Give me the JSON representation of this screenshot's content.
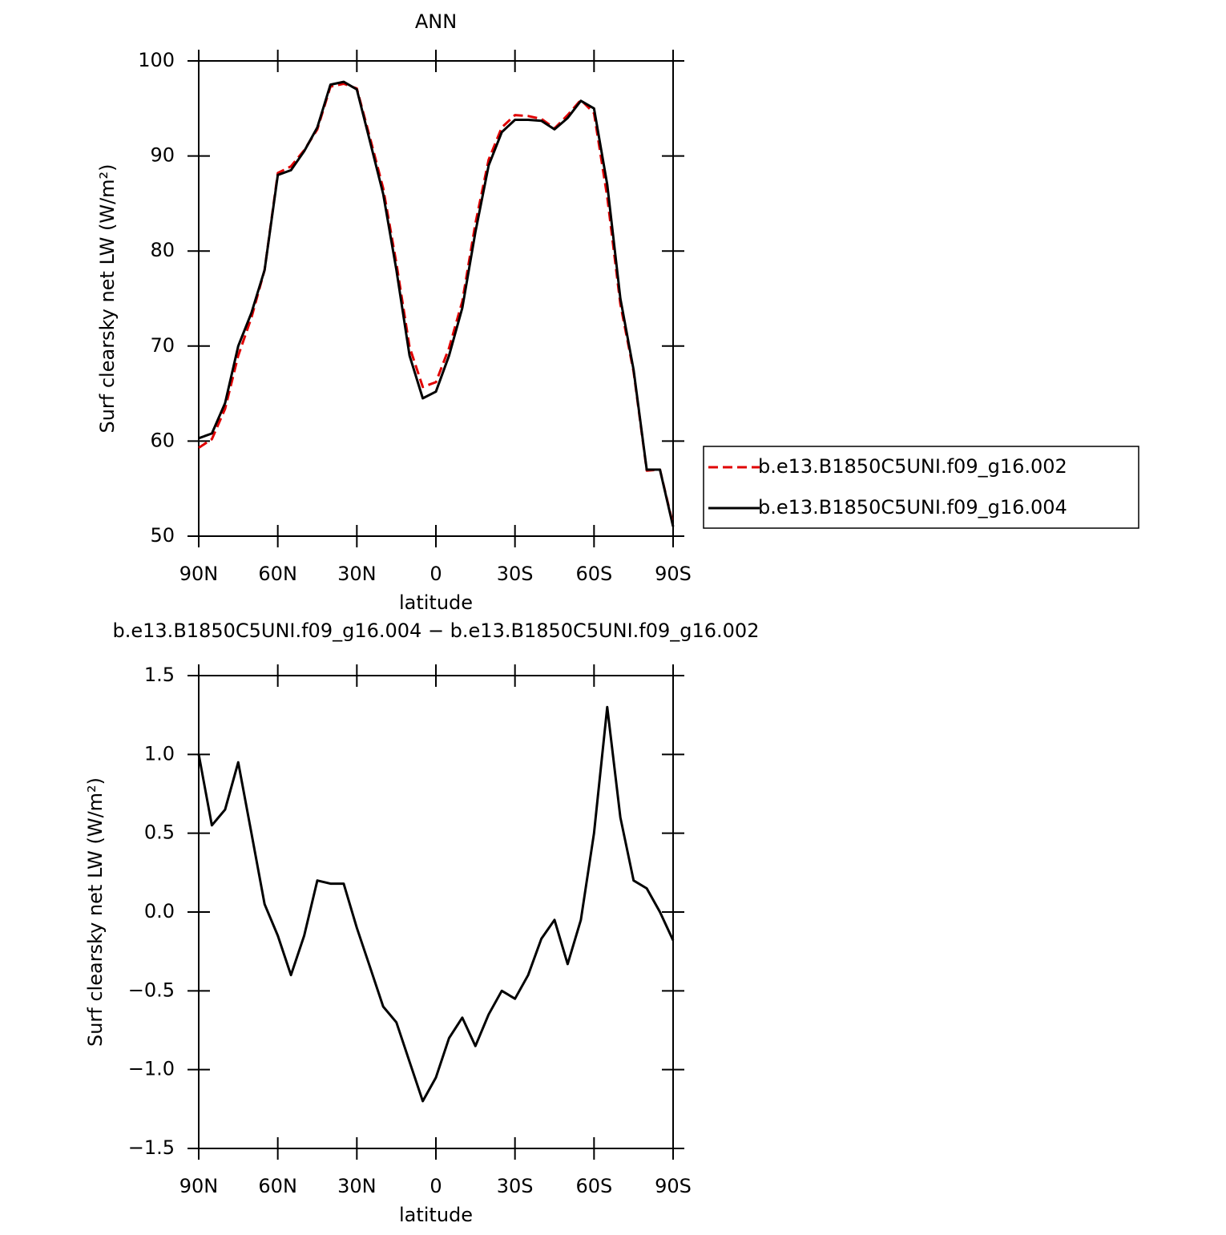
{
  "chart_data": [
    {
      "type": "line",
      "title": "ANN",
      "x_label": "latitude",
      "y_label": "Surf clearsky net LW (W/m²)",
      "x": [
        90,
        85,
        80,
        75,
        70,
        65,
        60,
        55,
        50,
        45,
        40,
        35,
        30,
        25,
        20,
        15,
        10,
        5,
        0,
        -5,
        -10,
        -15,
        -20,
        -25,
        -30,
        -35,
        -40,
        -45,
        -50,
        -55,
        -60,
        -65,
        -70,
        -75,
        -80,
        -85,
        -90
      ],
      "series": [
        {
          "name": "b.e13.B1850C5UNI.f09_g16.002",
          "color": "#e00000",
          "dashed": true,
          "values": [
            59.3,
            60.2,
            63.4,
            69.0,
            73.0,
            78.0,
            88.2,
            88.9,
            90.6,
            92.8,
            97.3,
            97.6,
            97.1,
            91.9,
            86.6,
            78.7,
            69.9,
            65.7,
            66.2,
            69.8,
            74.7,
            82.9,
            89.6,
            93.0,
            94.3,
            94.2,
            93.9,
            92.9,
            94.3,
            95.9,
            94.5,
            85.7,
            74.4,
            67.3,
            56.9,
            57.0,
            51.2
          ]
        },
        {
          "name": "b.e13.B1850C5UNI.f09_g16.004",
          "color": "#000000",
          "dashed": false,
          "values": [
            60.3,
            60.8,
            64.0,
            70.0,
            73.5,
            78.0,
            88.0,
            88.5,
            90.5,
            93.0,
            97.5,
            97.8,
            97.0,
            91.5,
            86.0,
            78.0,
            69.0,
            64.5,
            65.2,
            69.0,
            74.0,
            82.0,
            89.0,
            92.5,
            93.8,
            93.8,
            93.7,
            92.8,
            94.0,
            95.8,
            95.0,
            87.0,
            75.0,
            67.5,
            57.0,
            57.0,
            51.0
          ]
        }
      ],
      "xlim": [
        90,
        -90
      ],
      "xticks": [
        {
          "value": 90,
          "label": "90N"
        },
        {
          "value": 60,
          "label": "60N"
        },
        {
          "value": 30,
          "label": "30N"
        },
        0,
        {
          "value": -30,
          "label": "30S"
        },
        {
          "value": -60,
          "label": "60S"
        },
        {
          "value": -90,
          "label": "90S"
        }
      ],
      "ylim": [
        50,
        100
      ],
      "yticks": [
        50,
        60,
        70,
        80,
        90,
        100
      ],
      "legend": "right"
    },
    {
      "type": "line",
      "title": "b.e13.B1850C5UNI.f09_g16.004 − b.e13.B1850C5UNI.f09_g16.002",
      "x_label": "latitude",
      "y_label": "Surf clearsky net LW (W/m²)",
      "x": [
        90,
        85,
        80,
        75,
        70,
        65,
        60,
        55,
        50,
        45,
        40,
        35,
        30,
        25,
        20,
        15,
        10,
        5,
        0,
        -5,
        -10,
        -15,
        -20,
        -25,
        -30,
        -35,
        -40,
        -45,
        -50,
        -55,
        -60,
        -65,
        -70,
        -75,
        -80,
        -85,
        -90
      ],
      "series": [
        {
          "color": "#000000",
          "dashed": false,
          "values": [
            1.0,
            0.55,
            0.65,
            0.95,
            0.5,
            0.05,
            -0.15,
            -0.4,
            -0.15,
            0.2,
            0.18,
            0.18,
            -0.1,
            -0.35,
            -0.6,
            -0.7,
            -0.95,
            -1.2,
            -1.05,
            -0.8,
            -0.67,
            -0.85,
            -0.65,
            -0.5,
            -0.55,
            -0.4,
            -0.17,
            -0.05,
            -0.33,
            -0.05,
            0.5,
            1.3,
            0.6,
            0.2,
            0.15,
            0.0,
            -0.18
          ]
        }
      ],
      "xlim": [
        90,
        -90
      ],
      "xticks": [
        {
          "value": 90,
          "label": "90N"
        },
        {
          "value": 60,
          "label": "60N"
        },
        {
          "value": 30,
          "label": "30N"
        },
        0,
        {
          "value": -30,
          "label": "30S"
        },
        {
          "value": -60,
          "label": "60S"
        },
        {
          "value": -90,
          "label": "90S"
        }
      ],
      "ylim": [
        -1.5,
        1.5
      ],
      "yticks": [
        {
          "value": -1.5,
          "label": "−1.5"
        },
        {
          "value": -1.0,
          "label": "−1.0"
        },
        {
          "value": -0.5,
          "label": "−0.5"
        },
        {
          "value": 0,
          "label": "0.0"
        },
        {
          "value": 0.5,
          "label": "0.5"
        },
        {
          "value": 1.0,
          "label": "1.0"
        },
        {
          "value": 1.5,
          "label": "1.5"
        }
      ]
    }
  ]
}
